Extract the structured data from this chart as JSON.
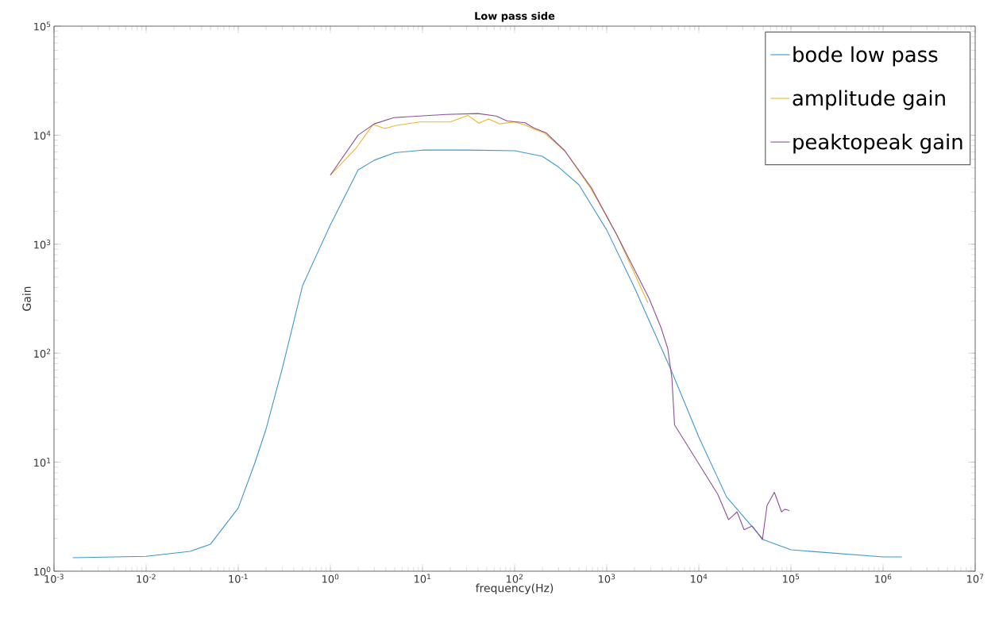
{
  "chart_data": {
    "type": "line",
    "title": "Low pass side",
    "xlabel": "frequency(Hz)",
    "ylabel": "Gain",
    "log": "xy",
    "legend": "top right",
    "grid": false,
    "xlim": [
      0.001,
      10000000
    ],
    "ylim": [
      1,
      100000
    ],
    "xticks": [
      {
        "value": 0.001,
        "label": "10$^{-3}$"
      },
      {
        "value": 0.01,
        "label": "10$^{-2}$"
      },
      {
        "value": 0.1,
        "label": "10$^{-1}$"
      },
      {
        "value": 1,
        "label": "10$^{0}$"
      },
      {
        "value": 10,
        "label": "10$^{1}$"
      },
      {
        "value": 100,
        "label": "10$^{2}$"
      },
      {
        "value": 1000,
        "label": "10$^{3}$"
      },
      {
        "value": 10000,
        "label": "10$^{4}$"
      },
      {
        "value": 100000,
        "label": "10$^{5}$"
      },
      {
        "value": 1000000,
        "label": "10$^{6}$"
      },
      {
        "value": 10000000,
        "label": "10$^{7}$"
      }
    ],
    "yticks": [
      {
        "value": 1,
        "label": "10$^{0}$"
      },
      {
        "value": 10,
        "label": "10$^{1}$"
      },
      {
        "value": 100,
        "label": "10$^{2}$"
      },
      {
        "value": 1000,
        "label": "10$^{3}$"
      },
      {
        "value": 10000,
        "label": "10$^{4}$"
      },
      {
        "value": 100000,
        "label": "10$^{5}$"
      }
    ],
    "series": [
      {
        "name": "bode low pass",
        "color": "#3d97d3",
        "x": [
          0.0016,
          0.01,
          0.03,
          0.05,
          0.1,
          0.15,
          0.2,
          0.3,
          0.5,
          0.7,
          1,
          2,
          3,
          5,
          10,
          30,
          100,
          200,
          300,
          500,
          1000,
          2000,
          5000,
          10000,
          20000,
          50000,
          100000,
          1000000,
          1600000
        ],
        "values": [
          1.33,
          1.37,
          1.52,
          1.77,
          3.8,
          9.6,
          20,
          72,
          417,
          780,
          1500,
          4800,
          5900,
          6900,
          7300,
          7300,
          7200,
          6400,
          5100,
          3500,
          1350,
          400,
          70,
          17,
          4.8,
          1.95,
          1.57,
          1.35,
          1.35
        ]
      },
      {
        "name": "amplitude gain",
        "color": "#eeb628",
        "x": [
          1,
          1.9,
          2.9,
          3.9,
          5.2,
          9.3,
          20,
          31,
          41,
          52,
          68,
          100,
          130,
          160,
          210,
          350,
          680,
          1300,
          2800
        ],
        "values": [
          4300,
          7600,
          12500,
          11500,
          12300,
          13200,
          13200,
          15200,
          12900,
          14100,
          12700,
          13200,
          12400,
          11400,
          10500,
          7200,
          3200,
          1200,
          290
        ]
      },
      {
        "name": "peaktopeak gain",
        "color": "#8e4f96",
        "x": [
          1,
          2,
          3,
          4.9,
          18,
          40,
          63,
          83,
          130,
          160,
          220,
          350,
          680,
          1300,
          2900,
          3900,
          4600,
          5100,
          5450,
          16000,
          21000,
          26000,
          31000,
          38000,
          49000,
          55000,
          66000,
          79000,
          86000,
          96000
        ],
        "values": [
          4300,
          10000,
          12700,
          14500,
          15500,
          15800,
          15000,
          13500,
          13000,
          11700,
          10500,
          7200,
          3300,
          1200,
          315,
          170,
          110,
          59,
          22,
          5.1,
          2.97,
          3.5,
          2.4,
          2.6,
          1.95,
          4.0,
          5.3,
          3.5,
          3.7,
          3.6
        ]
      }
    ]
  }
}
